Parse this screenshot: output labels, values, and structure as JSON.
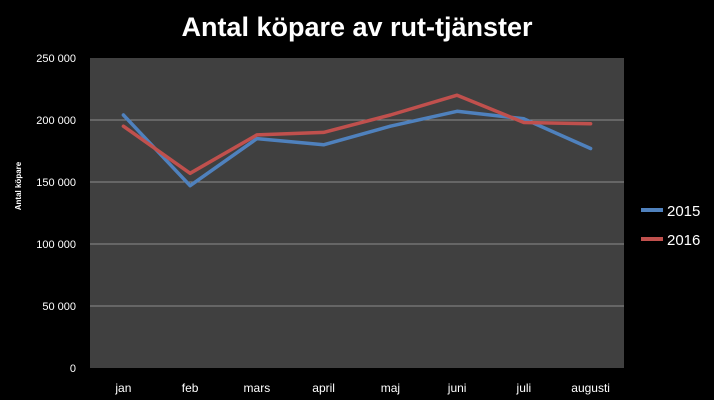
{
  "chart_data": {
    "type": "line",
    "title": "Antal köpare av rut-tjänster",
    "xlabel": "",
    "ylabel": "Antal köpare",
    "categories": [
      "jan",
      "feb",
      "mars",
      "april",
      "maj",
      "juni",
      "juli",
      "augusti"
    ],
    "y_ticks": [
      "0",
      "50 000",
      "100 000",
      "150 000",
      "200 000",
      "250 000"
    ],
    "ylim": [
      0,
      250000
    ],
    "grid": true,
    "legend_position": "right",
    "series": [
      {
        "name": "2015",
        "color": "#4f81bd",
        "values": [
          204000,
          147000,
          185000,
          180000,
          195000,
          207000,
          201000,
          177000
        ]
      },
      {
        "name": "2016",
        "color": "#c0504d",
        "values": [
          195000,
          157000,
          188000,
          190000,
          204000,
          220000,
          198000,
          197000
        ]
      }
    ]
  },
  "colors": {
    "background": "#000000",
    "plot_area": "#404040",
    "gridline": "#8c8c8c",
    "text": "#ffffff"
  }
}
